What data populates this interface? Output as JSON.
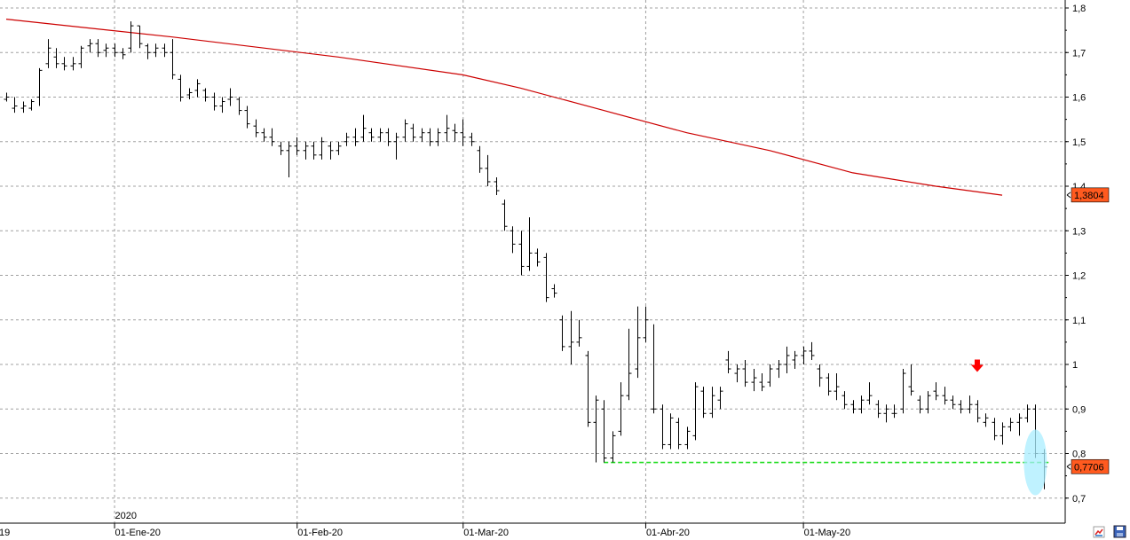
{
  "chart_data": {
    "type": "ohlc",
    "title": "",
    "xlabel": "",
    "ylabel": "",
    "ylim": [
      0.66,
      1.82
    ],
    "grid": true,
    "y_ticks": [
      "1,8",
      "1,7",
      "1,6",
      "1,5",
      "1,4",
      "1,3",
      "1,2",
      "1,1",
      "1",
      "0,9",
      "0,8",
      "0,7"
    ],
    "y_tick_values": [
      1.8,
      1.7,
      1.6,
      1.5,
      1.4,
      1.3,
      1.2,
      1.1,
      1.0,
      0.9,
      0.8,
      0.7
    ],
    "x_labels": [
      {
        "text": "19",
        "bar": 0
      },
      {
        "text": "01-Ene-20",
        "bar": 13
      },
      {
        "text": "01-Feb-20",
        "bar": 35
      },
      {
        "text": "01-Mar-20",
        "bar": 55
      },
      {
        "text": "01-Abr-20",
        "bar": 77
      },
      {
        "text": "01-May-20",
        "bar": 96
      }
    ],
    "year_label": {
      "text": "2020",
      "bar": 13
    },
    "badges": [
      {
        "text": "1,3804",
        "value": 1.3804,
        "color": "#ff5a1f"
      },
      {
        "text": "0,7706",
        "value": 0.7706,
        "color": "#ff5a1f"
      }
    ],
    "series": [
      {
        "kind": "ohlc",
        "color": "#000000",
        "values": [
          [
            1.595,
            1.61,
            1.59,
            1.6
          ],
          [
            1.575,
            1.6,
            1.565,
            1.58
          ],
          [
            1.575,
            1.59,
            1.565,
            1.58
          ],
          [
            1.575,
            1.595,
            1.57,
            1.59
          ],
          [
            1.6,
            1.665,
            1.58,
            1.66
          ],
          [
            1.675,
            1.73,
            1.665,
            1.71
          ],
          [
            1.69,
            1.71,
            1.665,
            1.675
          ],
          [
            1.675,
            1.69,
            1.66,
            1.67
          ],
          [
            1.67,
            1.69,
            1.66,
            1.675
          ],
          [
            1.675,
            1.715,
            1.665,
            1.71
          ],
          [
            1.715,
            1.73,
            1.7,
            1.72
          ],
          [
            1.72,
            1.73,
            1.69,
            1.7
          ],
          [
            1.705,
            1.72,
            1.69,
            1.71
          ],
          [
            1.71,
            1.72,
            1.69,
            1.7
          ],
          [
            1.7,
            1.71,
            1.685,
            1.695
          ],
          [
            1.71,
            1.77,
            1.7,
            1.76
          ],
          [
            1.76,
            1.76,
            1.71,
            1.72
          ],
          [
            1.715,
            1.72,
            1.685,
            1.7
          ],
          [
            1.7,
            1.72,
            1.69,
            1.71
          ],
          [
            1.71,
            1.72,
            1.69,
            1.7
          ],
          [
            1.7,
            1.73,
            1.64,
            1.65
          ],
          [
            1.64,
            1.65,
            1.59,
            1.6
          ],
          [
            1.605,
            1.62,
            1.595,
            1.61
          ],
          [
            1.615,
            1.64,
            1.6,
            1.63
          ],
          [
            1.615,
            1.62,
            1.59,
            1.6
          ],
          [
            1.6,
            1.61,
            1.57,
            1.58
          ],
          [
            1.58,
            1.6,
            1.565,
            1.59
          ],
          [
            1.595,
            1.62,
            1.58,
            1.6
          ],
          [
            1.595,
            1.6,
            1.56,
            1.57
          ],
          [
            1.57,
            1.58,
            1.53,
            1.54
          ],
          [
            1.535,
            1.55,
            1.51,
            1.52
          ],
          [
            1.52,
            1.53,
            1.5,
            1.51
          ],
          [
            1.51,
            1.53,
            1.49,
            1.5
          ],
          [
            1.49,
            1.5,
            1.47,
            1.48
          ],
          [
            1.48,
            1.5,
            1.42,
            1.49
          ],
          [
            1.49,
            1.51,
            1.47,
            1.48
          ],
          [
            1.48,
            1.5,
            1.46,
            1.49
          ],
          [
            1.49,
            1.5,
            1.46,
            1.47
          ],
          [
            1.47,
            1.51,
            1.46,
            1.5
          ],
          [
            1.49,
            1.5,
            1.46,
            1.48
          ],
          [
            1.48,
            1.5,
            1.47,
            1.49
          ],
          [
            1.5,
            1.52,
            1.49,
            1.51
          ],
          [
            1.51,
            1.53,
            1.49,
            1.5
          ],
          [
            1.51,
            1.56,
            1.5,
            1.53
          ],
          [
            1.52,
            1.53,
            1.5,
            1.51
          ],
          [
            1.51,
            1.53,
            1.5,
            1.52
          ],
          [
            1.52,
            1.53,
            1.49,
            1.5
          ],
          [
            1.5,
            1.52,
            1.46,
            1.51
          ],
          [
            1.51,
            1.55,
            1.5,
            1.54
          ],
          [
            1.53,
            1.54,
            1.5,
            1.51
          ],
          [
            1.51,
            1.53,
            1.5,
            1.52
          ],
          [
            1.52,
            1.53,
            1.49,
            1.5
          ],
          [
            1.5,
            1.53,
            1.49,
            1.52
          ],
          [
            1.52,
            1.56,
            1.5,
            1.53
          ],
          [
            1.525,
            1.54,
            1.5,
            1.52
          ],
          [
            1.52,
            1.55,
            1.49,
            1.51
          ],
          [
            1.51,
            1.52,
            1.49,
            1.5
          ],
          [
            1.48,
            1.49,
            1.43,
            1.44
          ],
          [
            1.44,
            1.47,
            1.4,
            1.41
          ],
          [
            1.41,
            1.42,
            1.38,
            1.39
          ],
          [
            1.36,
            1.37,
            1.3,
            1.31
          ],
          [
            1.3,
            1.31,
            1.25,
            1.27
          ],
          [
            1.27,
            1.3,
            1.2,
            1.22
          ],
          [
            1.22,
            1.33,
            1.21,
            1.25
          ],
          [
            1.25,
            1.26,
            1.22,
            1.23
          ],
          [
            1.24,
            1.25,
            1.14,
            1.15
          ],
          [
            1.17,
            1.18,
            1.15,
            1.16
          ],
          [
            1.1,
            1.11,
            1.03,
            1.04
          ],
          [
            1.04,
            1.12,
            1.0,
            1.05
          ],
          [
            1.05,
            1.1,
            1.04,
            1.06
          ],
          [
            1.02,
            1.03,
            0.86,
            0.87
          ],
          [
            0.87,
            0.93,
            0.78,
            0.92
          ],
          [
            0.9,
            0.92,
            0.78,
            0.79
          ],
          [
            0.79,
            0.85,
            0.78,
            0.84
          ],
          [
            0.85,
            0.96,
            0.84,
            0.93
          ],
          [
            0.93,
            1.08,
            0.92,
            0.98
          ],
          [
            0.99,
            1.13,
            0.97,
            1.06
          ],
          [
            1.06,
            1.13,
            1.05,
            1.1
          ],
          [
            0.9,
            1.09,
            0.89,
            0.9
          ],
          [
            0.9,
            0.91,
            0.81,
            0.82
          ],
          [
            0.82,
            0.89,
            0.81,
            0.88
          ],
          [
            0.87,
            0.88,
            0.81,
            0.82
          ],
          [
            0.82,
            0.86,
            0.81,
            0.85
          ],
          [
            0.84,
            0.96,
            0.83,
            0.95
          ],
          [
            0.94,
            0.95,
            0.88,
            0.89
          ],
          [
            0.89,
            0.95,
            0.88,
            0.93
          ],
          [
            0.92,
            0.95,
            0.9,
            0.94
          ],
          [
            1.01,
            1.03,
            0.98,
            0.99
          ],
          [
            0.98,
            1.0,
            0.96,
            0.99
          ],
          [
            0.99,
            1.01,
            0.95,
            0.96
          ],
          [
            0.96,
            0.99,
            0.94,
            0.97
          ],
          [
            0.96,
            0.98,
            0.94,
            0.95
          ],
          [
            0.96,
            1.0,
            0.95,
            0.99
          ],
          [
            0.99,
            1.01,
            0.97,
            1.0
          ],
          [
            1.0,
            1.04,
            0.98,
            1.02
          ],
          [
            1.01,
            1.03,
            0.99,
            1.02
          ],
          [
            1.02,
            1.04,
            1.0,
            1.03
          ],
          [
            1.03,
            1.05,
            1.01,
            1.02
          ],
          [
            0.99,
            1.0,
            0.95,
            0.97
          ],
          [
            0.97,
            0.98,
            0.93,
            0.94
          ],
          [
            0.94,
            0.98,
            0.92,
            0.95
          ],
          [
            0.93,
            0.94,
            0.9,
            0.91
          ],
          [
            0.91,
            0.92,
            0.89,
            0.9
          ],
          [
            0.9,
            0.93,
            0.89,
            0.92
          ],
          [
            0.92,
            0.96,
            0.91,
            0.93
          ],
          [
            0.91,
            0.92,
            0.88,
            0.89
          ],
          [
            0.89,
            0.91,
            0.87,
            0.9
          ],
          [
            0.89,
            0.91,
            0.88,
            0.89
          ],
          [
            0.9,
            0.99,
            0.89,
            0.98
          ],
          [
            0.95,
            1.0,
            0.93,
            0.94
          ],
          [
            0.92,
            0.93,
            0.89,
            0.9
          ],
          [
            0.9,
            0.94,
            0.89,
            0.93
          ],
          [
            0.94,
            0.96,
            0.92,
            0.93
          ],
          [
            0.93,
            0.95,
            0.91,
            0.92
          ],
          [
            0.92,
            0.93,
            0.9,
            0.91
          ],
          [
            0.91,
            0.92,
            0.89,
            0.9
          ],
          [
            0.9,
            0.93,
            0.89,
            0.91
          ],
          [
            0.91,
            0.92,
            0.87,
            0.88
          ],
          [
            0.87,
            0.89,
            0.86,
            0.88
          ],
          [
            0.87,
            0.88,
            0.83,
            0.84
          ],
          [
            0.84,
            0.87,
            0.82,
            0.86
          ],
          [
            0.86,
            0.88,
            0.85,
            0.87
          ],
          [
            0.87,
            0.89,
            0.84,
            0.88
          ],
          [
            0.88,
            0.91,
            0.87,
            0.9
          ],
          [
            0.9,
            0.91,
            0.79,
            0.8
          ],
          [
            0.8,
            0.81,
            0.72,
            0.77
          ]
        ]
      },
      {
        "kind": "line",
        "color": "#cc0000",
        "points": [
          [
            0,
            1.775
          ],
          [
            20,
            1.735
          ],
          [
            40,
            1.69
          ],
          [
            55,
            1.65
          ],
          [
            62,
            1.62
          ],
          [
            72,
            1.57
          ],
          [
            82,
            1.52
          ],
          [
            92,
            1.48
          ],
          [
            102,
            1.43
          ],
          [
            112,
            1.4
          ],
          [
            120,
            1.38
          ]
        ]
      }
    ],
    "support_line": {
      "value": 0.78,
      "from_bar": 72,
      "to_bar": 125,
      "color": "#22dd22",
      "style": "dashed"
    },
    "annotations": [
      {
        "type": "arrow-down",
        "bar": 117,
        "value": 0.995,
        "color": "#ff0000"
      },
      {
        "type": "ellipse-highlight",
        "bar": 124,
        "value": 0.78,
        "color": "#aaeeff"
      }
    ]
  },
  "toolbar": {
    "icons": [
      "chart-settings-icon",
      "save-icon"
    ]
  }
}
